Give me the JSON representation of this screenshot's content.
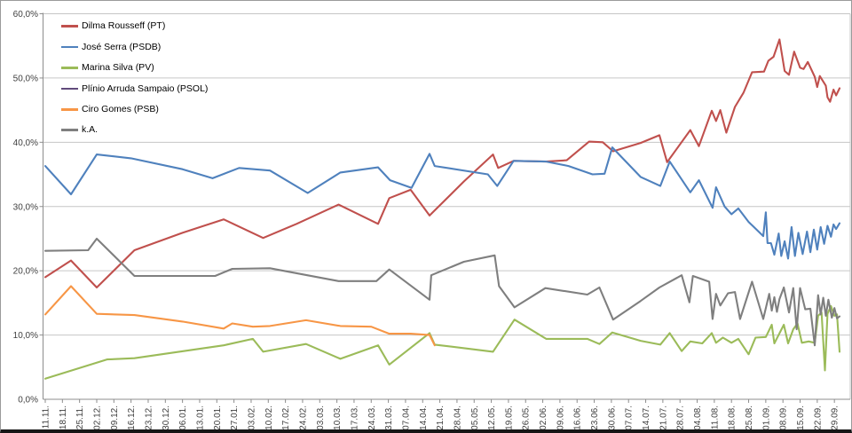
{
  "chart_data": {
    "type": "line",
    "title": "",
    "description_visible_text_only": "Brazilian presidential election polling line chart, weekly dates Nov to Sep, values in percent with German decimal commas",
    "ylim": [
      0,
      60
    ],
    "y_step": 10,
    "grid": true,
    "legend_position": "top-left-inside",
    "y_tick_labels": [
      "0,0%",
      "10,0%",
      "20,0%",
      "30,0%",
      "40,0%",
      "50,0%",
      "60,0%"
    ],
    "x_categories": [
      "11.11.",
      "18.11.",
      "25.11.",
      "02.12.",
      "09.12.",
      "16.12.",
      "23.12.",
      "30.12.",
      "06.01.",
      "13.01.",
      "20.01.",
      "27.01.",
      "03.02.",
      "10.02.",
      "17.02.",
      "24.02.",
      "03.03.",
      "10.03.",
      "17.03.",
      "24.03.",
      "31.03.",
      "07.04.",
      "14.04.",
      "21.04.",
      "28.04.",
      "05.05.",
      "12.05.",
      "19.05.",
      "26.05.",
      "02.06.",
      "09.06.",
      "16.06.",
      "23.06.",
      "30.06.",
      "07.07.",
      "14.07.",
      "21.07.",
      "28.07.",
      "04.08.",
      "11.08.",
      "18.08.",
      "25.08.",
      "01.09.",
      "08.09.",
      "15.09.",
      "22.09.",
      "29.09."
    ],
    "points_note": "each point is [x_in_category_index_units, percent_value]; sampling is irregular (denser than weekly near the end)",
    "series": [
      {
        "name": "Dilma Rousseff (PT)",
        "color": "#C0504D",
        "points": [
          [
            0,
            19.0
          ],
          [
            1.5,
            21.6
          ],
          [
            3,
            17.4
          ],
          [
            5.2,
            23.2
          ],
          [
            8,
            25.9
          ],
          [
            10.4,
            28.0
          ],
          [
            12.7,
            25.1
          ],
          [
            14.65,
            27.3
          ],
          [
            17.1,
            30.3
          ],
          [
            19.4,
            27.3
          ],
          [
            20.05,
            31.3
          ],
          [
            21.3,
            32.6
          ],
          [
            22.4,
            28.6
          ],
          [
            24.4,
            33.9
          ],
          [
            26.1,
            38.1
          ],
          [
            26.4,
            36.0
          ],
          [
            27.3,
            37.1
          ],
          [
            29.2,
            37.0
          ],
          [
            30.4,
            37.2
          ],
          [
            31.7,
            40.1
          ],
          [
            32.5,
            40.0
          ],
          [
            33.1,
            38.6
          ],
          [
            34.7,
            39.9
          ],
          [
            35.8,
            41.1
          ],
          [
            36.25,
            36.9
          ],
          [
            37.6,
            41.9
          ],
          [
            38.1,
            39.4
          ],
          [
            38.85,
            44.9
          ],
          [
            39.1,
            43.3
          ],
          [
            39.35,
            45.0
          ],
          [
            39.7,
            41.5
          ],
          [
            40.2,
            45.5
          ],
          [
            40.7,
            47.7
          ],
          [
            41.2,
            50.9
          ],
          [
            41.9,
            51.0
          ],
          [
            42.15,
            52.7
          ],
          [
            42.45,
            53.3
          ],
          [
            42.8,
            56.0
          ],
          [
            43.1,
            51.1
          ],
          [
            43.35,
            50.5
          ],
          [
            43.65,
            54.1
          ],
          [
            44.0,
            51.6
          ],
          [
            44.2,
            51.4
          ],
          [
            44.45,
            52.5
          ],
          [
            44.85,
            50.2
          ],
          [
            45.0,
            48.6
          ],
          [
            45.15,
            50.3
          ],
          [
            45.5,
            48.8
          ],
          [
            45.6,
            47.0
          ],
          [
            45.75,
            46.3
          ],
          [
            45.95,
            48.2
          ],
          [
            46.1,
            47.3
          ],
          [
            46.3,
            48.4
          ]
        ]
      },
      {
        "name": "José Serra (PSDB)",
        "color": "#4F81BD",
        "points": [
          [
            0,
            36.3
          ],
          [
            1.5,
            31.9
          ],
          [
            3,
            38.1
          ],
          [
            5,
            37.5
          ],
          [
            8,
            35.8
          ],
          [
            9.75,
            34.4
          ],
          [
            11.3,
            36.0
          ],
          [
            13.1,
            35.6
          ],
          [
            15.3,
            32.1
          ],
          [
            17.2,
            35.3
          ],
          [
            19.4,
            36.1
          ],
          [
            20.1,
            34.1
          ],
          [
            21.35,
            32.9
          ],
          [
            22.4,
            38.2
          ],
          [
            22.7,
            36.3
          ],
          [
            25.8,
            35.0
          ],
          [
            26.35,
            33.2
          ],
          [
            27.3,
            37.1
          ],
          [
            29.2,
            37.0
          ],
          [
            30.5,
            36.3
          ],
          [
            31.9,
            35.0
          ],
          [
            32.6,
            35.1
          ],
          [
            33.05,
            39.2
          ],
          [
            34.7,
            34.6
          ],
          [
            35.85,
            33.2
          ],
          [
            36.4,
            37.0
          ],
          [
            37.6,
            32.2
          ],
          [
            38.1,
            34.1
          ],
          [
            38.9,
            29.8
          ],
          [
            39.1,
            33.0
          ],
          [
            39.6,
            30.0
          ],
          [
            40.0,
            28.8
          ],
          [
            40.4,
            29.7
          ],
          [
            41.0,
            27.6
          ],
          [
            41.5,
            26.3
          ],
          [
            41.85,
            25.4
          ],
          [
            42.0,
            29.1
          ],
          [
            42.1,
            24.3
          ],
          [
            42.3,
            24.3
          ],
          [
            42.5,
            22.5
          ],
          [
            42.75,
            25.8
          ],
          [
            42.9,
            22.3
          ],
          [
            43.1,
            24.6
          ],
          [
            43.3,
            21.9
          ],
          [
            43.5,
            26.8
          ],
          [
            43.7,
            22.3
          ],
          [
            43.9,
            25.9
          ],
          [
            44.15,
            22.6
          ],
          [
            44.4,
            26.1
          ],
          [
            44.6,
            22.9
          ],
          [
            44.8,
            26.4
          ],
          [
            45.0,
            23.3
          ],
          [
            45.2,
            26.8
          ],
          [
            45.4,
            24.2
          ],
          [
            45.6,
            27.0
          ],
          [
            45.8,
            25.3
          ],
          [
            45.95,
            27.2
          ],
          [
            46.1,
            26.5
          ],
          [
            46.3,
            27.4
          ]
        ]
      },
      {
        "name": "Marina Silva (PV)",
        "color": "#9BBB59",
        "points": [
          [
            0,
            3.2
          ],
          [
            3.6,
            6.2
          ],
          [
            5.2,
            6.4
          ],
          [
            10.4,
            8.4
          ],
          [
            12.1,
            9.4
          ],
          [
            12.7,
            7.4
          ],
          [
            15.2,
            8.6
          ],
          [
            17.2,
            6.3
          ],
          [
            19.4,
            8.4
          ],
          [
            20.05,
            5.4
          ],
          [
            22.4,
            10.3
          ],
          [
            22.7,
            8.5
          ],
          [
            26.1,
            7.4
          ],
          [
            27.35,
            12.4
          ],
          [
            29.2,
            9.4
          ],
          [
            31.6,
            9.4
          ],
          [
            32.3,
            8.6
          ],
          [
            33.05,
            10.4
          ],
          [
            34.7,
            9.1
          ],
          [
            35.85,
            8.5
          ],
          [
            36.4,
            10.3
          ],
          [
            37.1,
            7.5
          ],
          [
            37.6,
            9.0
          ],
          [
            38.3,
            8.7
          ],
          [
            38.85,
            10.3
          ],
          [
            39.1,
            8.8
          ],
          [
            39.5,
            9.6
          ],
          [
            40.0,
            8.8
          ],
          [
            40.4,
            9.4
          ],
          [
            41.0,
            7.0
          ],
          [
            41.4,
            9.6
          ],
          [
            42.0,
            9.7
          ],
          [
            42.35,
            11.6
          ],
          [
            42.5,
            8.7
          ],
          [
            43.05,
            11.6
          ],
          [
            43.3,
            8.7
          ],
          [
            43.6,
            10.9
          ],
          [
            43.85,
            11.8
          ],
          [
            44.1,
            8.8
          ],
          [
            44.5,
            9.0
          ],
          [
            44.85,
            8.8
          ],
          [
            45.05,
            13.0
          ],
          [
            45.25,
            13.5
          ],
          [
            45.45,
            4.5
          ],
          [
            45.6,
            13.3
          ],
          [
            45.8,
            14.5
          ],
          [
            46.0,
            13.0
          ],
          [
            46.15,
            13.2
          ],
          [
            46.3,
            7.4
          ]
        ]
      },
      {
        "name": "Plínio Arruda Sampaio (PSOL)",
        "color": "#604A7B",
        "points": []
      },
      {
        "name": "Ciro Gomes (PSB)",
        "color": "#F79646",
        "points": [
          [
            0,
            13.2
          ],
          [
            1.5,
            17.6
          ],
          [
            3,
            13.3
          ],
          [
            5.2,
            13.1
          ],
          [
            8,
            12.1
          ],
          [
            10.4,
            11.0
          ],
          [
            10.9,
            11.8
          ],
          [
            12.1,
            11.3
          ],
          [
            13.1,
            11.4
          ],
          [
            15.2,
            12.3
          ],
          [
            17.2,
            11.4
          ],
          [
            19,
            11.3
          ],
          [
            20.05,
            10.2
          ],
          [
            21.3,
            10.2
          ],
          [
            22.4,
            10.0
          ],
          [
            22.7,
            8.4
          ]
        ]
      },
      {
        "name": "k.A.",
        "color": "#7F7F7F",
        "points": [
          [
            0,
            23.1
          ],
          [
            2.5,
            23.2
          ],
          [
            3,
            25.0
          ],
          [
            5.2,
            19.2
          ],
          [
            9.9,
            19.2
          ],
          [
            10.9,
            20.3
          ],
          [
            13.1,
            20.4
          ],
          [
            17.1,
            18.4
          ],
          [
            19.3,
            18.4
          ],
          [
            20.05,
            20.2
          ],
          [
            22.4,
            15.5
          ],
          [
            22.5,
            19.3
          ],
          [
            24.4,
            21.4
          ],
          [
            26.2,
            22.4
          ],
          [
            26.45,
            17.6
          ],
          [
            27.35,
            14.3
          ],
          [
            29.15,
            17.3
          ],
          [
            31.6,
            16.3
          ],
          [
            32.3,
            17.4
          ],
          [
            33.1,
            12.4
          ],
          [
            34.7,
            15.3
          ],
          [
            35.8,
            17.4
          ],
          [
            37.1,
            19.3
          ],
          [
            37.55,
            15.1
          ],
          [
            37.75,
            19.2
          ],
          [
            38.7,
            18.3
          ],
          [
            38.9,
            12.5
          ],
          [
            39.1,
            16.4
          ],
          [
            39.35,
            14.6
          ],
          [
            39.8,
            16.5
          ],
          [
            40.2,
            16.7
          ],
          [
            40.5,
            12.5
          ],
          [
            41.2,
            18.3
          ],
          [
            41.85,
            12.5
          ],
          [
            42.2,
            16.4
          ],
          [
            42.35,
            13.8
          ],
          [
            42.5,
            15.9
          ],
          [
            42.65,
            13.6
          ],
          [
            42.8,
            15.6
          ],
          [
            43.05,
            17.4
          ],
          [
            43.35,
            13.5
          ],
          [
            43.6,
            17.3
          ],
          [
            43.8,
            10.9
          ],
          [
            44.0,
            17.3
          ],
          [
            44.3,
            14.0
          ],
          [
            44.6,
            14.1
          ],
          [
            44.85,
            8.4
          ],
          [
            45.05,
            16.2
          ],
          [
            45.2,
            13.2
          ],
          [
            45.35,
            15.8
          ],
          [
            45.5,
            13.0
          ],
          [
            45.65,
            15.5
          ],
          [
            45.85,
            12.7
          ],
          [
            46.0,
            14.2
          ],
          [
            46.15,
            12.6
          ],
          [
            46.3,
            12.9
          ]
        ]
      }
    ],
    "colors": {
      "gridline": "#C6C6C6",
      "axis": "#8C8C8C",
      "axis_text": "#3f3f3f"
    }
  }
}
